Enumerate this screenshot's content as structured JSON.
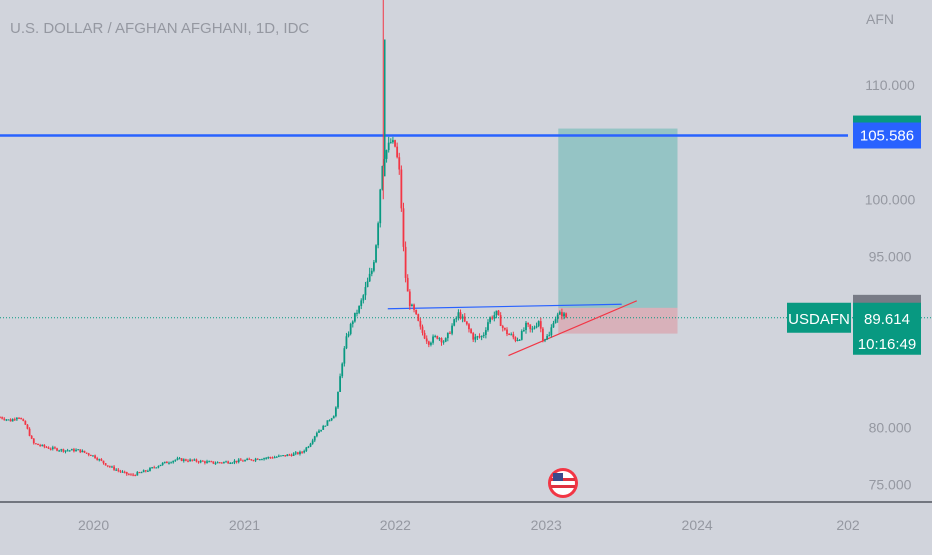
{
  "header": {
    "title": "U.S. DOLLAR / AFGHAN AFGHANI, 1D, IDC"
  },
  "axis": {
    "unit": "AFN",
    "y_ticks": [
      75,
      80,
      85,
      90,
      95,
      100,
      105,
      110
    ],
    "y_tick_labels": [
      "75.000",
      "80.000",
      "",
      "",
      "95.000",
      "100.000",
      "",
      "110.000"
    ],
    "x_ticks": [
      {
        "label": "2020",
        "t": 2020.0
      },
      {
        "label": "2021",
        "t": 2021.0
      },
      {
        "label": "2022",
        "t": 2022.0
      },
      {
        "label": "2023",
        "t": 2023.0
      },
      {
        "label": "2024",
        "t": 2024.0
      },
      {
        "label": "202",
        "t": 2025.0
      }
    ]
  },
  "price_labels": [
    {
      "id": "target",
      "text": "106.196",
      "value": 106.196,
      "color": "#089981"
    },
    {
      "id": "hline",
      "text": "105.586",
      "value": 105.586,
      "color": "#2962ff"
    },
    {
      "id": "entry",
      "text": "90.483",
      "value": 90.483,
      "color": "#787b86"
    },
    {
      "id": "stop",
      "text": "88.227",
      "value": 88.227,
      "color": "#f23645"
    }
  ],
  "last_price": {
    "symbol": "USDAFN",
    "price": "89.614",
    "value": 89.614,
    "countdown": "10:16:49",
    "color": "#089981"
  },
  "chart_data": {
    "type": "candlestick",
    "title": "U.S. DOLLAR / AFGHAN AFGHANI, 1D, IDC",
    "ylabel": "AFN",
    "ylim": [
      73.5,
      120
    ],
    "xlim": [
      2019.38,
      2025.0
    ],
    "series": [
      {
        "name": "USDAFN",
        "points": [
          [
            2019.38,
            80.9
          ],
          [
            2019.45,
            80.6
          ],
          [
            2019.5,
            81.0
          ],
          [
            2019.55,
            80.2
          ],
          [
            2019.6,
            78.6
          ],
          [
            2019.7,
            78.2
          ],
          [
            2019.8,
            78.0
          ],
          [
            2019.9,
            78.0
          ],
          [
            2020.0,
            77.5
          ],
          [
            2020.1,
            76.6
          ],
          [
            2020.2,
            76.0
          ],
          [
            2020.25,
            75.8
          ],
          [
            2020.35,
            76.2
          ],
          [
            2020.45,
            76.8
          ],
          [
            2020.55,
            77.2
          ],
          [
            2020.65,
            77.1
          ],
          [
            2020.8,
            76.9
          ],
          [
            2020.9,
            77.0
          ],
          [
            2021.0,
            77.1
          ],
          [
            2021.1,
            77.3
          ],
          [
            2021.2,
            77.4
          ],
          [
            2021.3,
            77.6
          ],
          [
            2021.38,
            77.8
          ],
          [
            2021.43,
            78.5
          ],
          [
            2021.48,
            79.6
          ],
          [
            2021.52,
            80.0
          ],
          [
            2021.55,
            80.5
          ],
          [
            2021.6,
            81.2
          ],
          [
            2021.62,
            83.0
          ],
          [
            2021.65,
            86.0
          ],
          [
            2021.68,
            88.0
          ],
          [
            2021.72,
            89.5
          ],
          [
            2021.76,
            90.5
          ],
          [
            2021.8,
            92.0
          ],
          [
            2021.85,
            94.0
          ],
          [
            2021.88,
            97.0
          ],
          [
            2021.91,
            103.0
          ],
          [
            2021.93,
            104.0
          ],
          [
            2021.95,
            104.5
          ],
          [
            2021.97,
            105.0
          ],
          [
            2022.0,
            104.6
          ],
          [
            2022.03,
            102.0
          ],
          [
            2022.06,
            94.0
          ],
          [
            2022.09,
            91.0
          ],
          [
            2022.13,
            90.0
          ],
          [
            2022.17,
            88.5
          ],
          [
            2022.22,
            87.5
          ],
          [
            2022.28,
            88.0
          ],
          [
            2022.33,
            87.5
          ],
          [
            2022.38,
            89.0
          ],
          [
            2022.42,
            90.0
          ],
          [
            2022.47,
            89.0
          ],
          [
            2022.52,
            87.8
          ],
          [
            2022.58,
            88.0
          ],
          [
            2022.62,
            89.5
          ],
          [
            2022.67,
            90.0
          ],
          [
            2022.72,
            88.5
          ],
          [
            2022.77,
            88.0
          ],
          [
            2022.8,
            87.7
          ],
          [
            2022.83,
            88.0
          ],
          [
            2022.87,
            89.0
          ],
          [
            2022.9,
            88.4
          ],
          [
            2022.95,
            89.4
          ],
          [
            2022.98,
            87.8
          ],
          [
            2023.02,
            88.0
          ],
          [
            2023.05,
            89.5
          ],
          [
            2023.1,
            90.0
          ],
          [
            2023.14,
            89.6
          ]
        ]
      }
    ],
    "lines": [
      {
        "name": "horizontal",
        "y": 105.586
      },
      {
        "name": "resistance",
        "from": [
          2021.95,
          90.4
        ],
        "to": [
          2023.5,
          90.8
        ]
      },
      {
        "name": "support",
        "from": [
          2022.75,
          86.3
        ],
        "to": [
          2023.6,
          91.1
        ]
      }
    ],
    "position": {
      "start": 2023.08,
      "end": 2023.87,
      "entry": 90.483,
      "target": 106.196,
      "stop": 88.227
    },
    "last": 89.614,
    "grid": false
  }
}
